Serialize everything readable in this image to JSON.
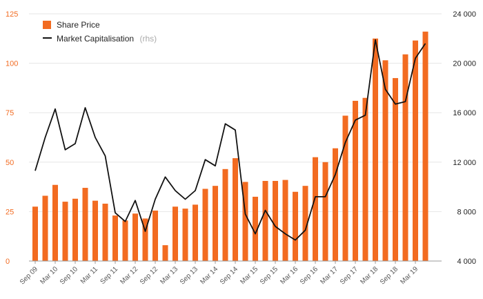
{
  "chart_data": {
    "type": "bar",
    "x_tick_labels": [
      "Sep 09",
      "Mar 10",
      "Sep 10",
      "Mar 11",
      "Sep 11",
      "Mar 12",
      "Sep 12",
      "Mar 13",
      "Sep 13",
      "Mar 14",
      "Sep 14",
      "Mar 15",
      "Sep 15",
      "Mar 16",
      "Sep 16",
      "Mar 17",
      "Sep 17",
      "Mar 18",
      "Sep 18",
      "Mar 19"
    ],
    "y_left": {
      "min": 0,
      "max": 125,
      "ticks": [
        0,
        25,
        50,
        75,
        100,
        125
      ],
      "tick_labels": [
        "0",
        "25",
        "50",
        "75",
        "100",
        "125"
      ]
    },
    "y_right": {
      "min": 4000,
      "max": 24000,
      "ticks": [
        4000,
        8000,
        12000,
        16000,
        20000,
        24000
      ],
      "tick_labels": [
        "4 000",
        "8 000",
        "12 000",
        "16 000",
        "20 000",
        "24 000"
      ]
    },
    "grid": true,
    "legend_position": "top-left",
    "series": [
      {
        "name": "Share Price",
        "kind": "bar",
        "axis": "left",
        "color": "#f26b21",
        "values": [
          27.5,
          33,
          38.5,
          30,
          31.5,
          37,
          30.5,
          29,
          23,
          20.5,
          24,
          21.5,
          25.5,
          8,
          27.5,
          26.5,
          28.5,
          36.5,
          38,
          46.5,
          52,
          40,
          32.5,
          40.5,
          40.5,
          41,
          35,
          38,
          52.5,
          50,
          57,
          73.5,
          81,
          82.5,
          112.5,
          101.5,
          92.5,
          104.5,
          111.5,
          116
        ]
      },
      {
        "name": "Market Capitalisation",
        "name_note": "(rhs)",
        "kind": "line",
        "axis": "right",
        "color": "#111111",
        "values": [
          11300,
          14000,
          16300,
          13000,
          13500,
          16400,
          14000,
          12500,
          7900,
          7200,
          8900,
          6400,
          9000,
          10800,
          9700,
          9000,
          9700,
          12200,
          11700,
          15100,
          14600,
          7800,
          6200,
          8100,
          6800,
          6200,
          5700,
          6500,
          9200,
          9200,
          11000,
          13600,
          15400,
          15800,
          21900,
          17900,
          16700,
          16900,
          20400,
          21600
        ]
      }
    ]
  }
}
